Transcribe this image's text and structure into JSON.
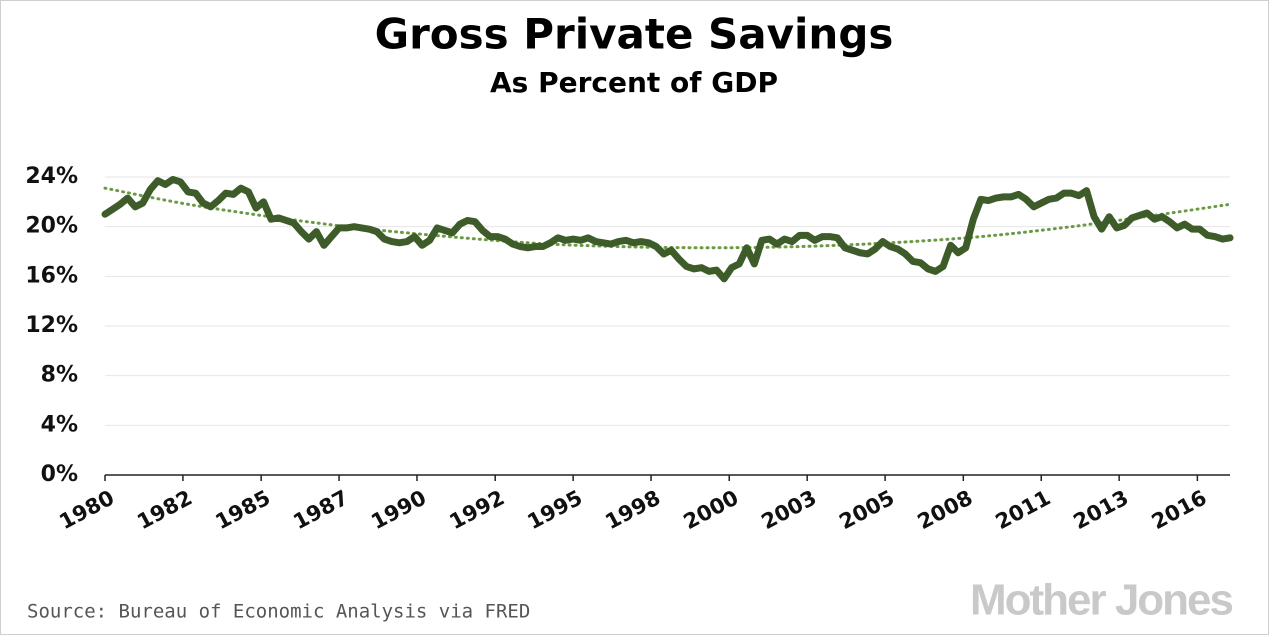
{
  "chart_data": {
    "type": "line",
    "title": "Gross Private Savings",
    "subtitle": "As Percent of GDP",
    "source": "Source: Bureau of Economic Analysis via FRED",
    "logo": "Mother Jones",
    "x": [
      1980,
      1980.25,
      1980.5,
      1980.75,
      1981,
      1981.25,
      1981.5,
      1981.75,
      1982,
      1982.25,
      1982.5,
      1982.75,
      1983,
      1983.25,
      1983.5,
      1983.75,
      1984,
      1984.25,
      1984.5,
      1984.75,
      1985,
      1985.25,
      1985.5,
      1985.75,
      1986,
      1986.25,
      1986.5,
      1986.75,
      1987,
      1987.25,
      1987.5,
      1987.75,
      1988,
      1988.25,
      1988.5,
      1988.75,
      1989,
      1989.25,
      1989.5,
      1989.75,
      1990,
      1990.25,
      1990.5,
      1990.75,
      1991,
      1991.25,
      1991.5,
      1991.75,
      1992,
      1992.25,
      1992.5,
      1992.75,
      1993,
      1993.25,
      1993.5,
      1993.75,
      1994,
      1994.25,
      1994.5,
      1994.75,
      1995,
      1995.25,
      1995.5,
      1995.75,
      1996,
      1996.25,
      1996.5,
      1996.75,
      1997,
      1997.25,
      1997.5,
      1997.75,
      1998,
      1998.25,
      1998.5,
      1998.75,
      1999,
      1999.25,
      1999.5,
      1999.75,
      2000,
      2000.25,
      2000.5,
      2000.75,
      2001,
      2001.25,
      2001.5,
      2001.75,
      2002,
      2002.25,
      2002.5,
      2002.75,
      2003,
      2003.25,
      2003.5,
      2003.75,
      2004,
      2004.25,
      2004.5,
      2004.75,
      2005,
      2005.25,
      2005.5,
      2005.75,
      2006,
      2006.25,
      2006.5,
      2006.75,
      2007,
      2007.25,
      2007.5,
      2007.75,
      2008,
      2008.25,
      2008.5,
      2008.75,
      2009,
      2009.25,
      2009.5,
      2009.75,
      2010,
      2010.25,
      2010.5,
      2010.75,
      2011,
      2011.25,
      2011.5,
      2011.75,
      2012,
      2012.25,
      2012.5,
      2012.75,
      2013,
      2013.25,
      2013.5,
      2013.75,
      2014,
      2014.25,
      2014.5,
      2014.75,
      2015,
      2015.25,
      2015.5,
      2015.75,
      2016,
      2016.25,
      2016.5,
      2016.75,
      2017,
      2017.25
    ],
    "series": [
      {
        "color": "#3e5c29",
        "values": [
          21.0,
          21.4,
          21.8,
          22.3,
          21.6,
          21.9,
          23.0,
          23.7,
          23.4,
          23.8,
          23.6,
          22.8,
          22.7,
          21.9,
          21.6,
          22.1,
          22.7,
          22.6,
          23.1,
          22.8,
          21.5,
          22.0,
          20.6,
          20.7,
          20.5,
          20.3,
          19.6,
          19.0,
          19.6,
          18.5,
          19.2,
          19.9,
          19.9,
          20.0,
          19.9,
          19.8,
          19.6,
          19.0,
          18.8,
          18.7,
          18.8,
          19.2,
          18.5,
          18.9,
          19.9,
          19.7,
          19.5,
          20.2,
          20.5,
          20.4,
          19.7,
          19.2,
          19.2,
          19.0,
          18.6,
          18.4,
          18.3,
          18.4,
          18.4,
          18.7,
          19.1,
          18.9,
          19.0,
          18.9,
          19.1,
          18.8,
          18.7,
          18.6,
          18.8,
          18.9,
          18.7,
          18.8,
          18.7,
          18.4,
          17.8,
          18.1,
          17.4,
          16.8,
          16.6,
          16.7,
          16.4,
          16.5,
          15.8,
          16.7,
          17.0,
          18.3,
          17.0,
          18.9,
          19.0,
          18.6,
          19.0,
          18.8,
          19.3,
          19.3,
          18.9,
          19.2,
          19.2,
          19.1,
          18.3,
          18.1,
          17.9,
          17.8,
          18.2,
          18.8,
          18.4,
          18.2,
          17.8,
          17.2,
          17.1,
          16.6,
          16.4,
          16.8,
          18.5,
          17.9,
          18.3,
          20.6,
          22.2,
          22.1,
          22.3,
          22.4,
          22.4,
          22.6,
          22.2,
          21.6,
          21.9,
          22.2,
          22.3,
          22.7,
          22.7,
          22.5,
          22.9,
          20.8,
          19.8,
          20.8,
          19.9,
          20.1,
          20.7,
          20.9,
          21.1,
          20.6,
          20.8,
          20.4,
          19.9,
          20.2,
          19.8,
          19.8,
          19.3,
          19.2,
          19.0,
          19.1
        ]
      }
    ],
    "trendline": {
      "color": "#6a9a44",
      "x": [
        1980,
        1983,
        1987,
        1990,
        1994,
        1997,
        2000,
        2003,
        2006,
        2009,
        2012,
        2015,
        2017.25
      ],
      "values": [
        23.1,
        21.7,
        20.3,
        19.5,
        18.7,
        18.4,
        18.3,
        18.4,
        18.7,
        19.2,
        20.0,
        21.0,
        21.8
      ]
    },
    "xlim": [
      1980,
      2017.25
    ],
    "xticks": [
      {
        "value": 1980,
        "label": "1980"
      },
      {
        "value": 1982.58,
        "label": "1982"
      },
      {
        "value": 1985.17,
        "label": "1985"
      },
      {
        "value": 1987.75,
        "label": "1987"
      },
      {
        "value": 1990.33,
        "label": "1990"
      },
      {
        "value": 1992.92,
        "label": "1992"
      },
      {
        "value": 1995.5,
        "label": "1995"
      },
      {
        "value": 1998.08,
        "label": "1998"
      },
      {
        "value": 2000.67,
        "label": "2000"
      },
      {
        "value": 2003.25,
        "label": "2003"
      },
      {
        "value": 2005.83,
        "label": "2005"
      },
      {
        "value": 2008.42,
        "label": "2008"
      },
      {
        "value": 2011,
        "label": "2011"
      },
      {
        "value": 2013.58,
        "label": "2013"
      },
      {
        "value": 2016.17,
        "label": "2016"
      }
    ],
    "ylim": [
      0,
      24
    ],
    "yticks": [
      {
        "value": 0,
        "label": "0%"
      },
      {
        "value": 4,
        "label": "4%"
      },
      {
        "value": 8,
        "label": "8%"
      },
      {
        "value": 12,
        "label": "12%"
      },
      {
        "value": 16,
        "label": "16%"
      },
      {
        "value": 20,
        "label": "20%"
      },
      {
        "value": 24,
        "label": "24%"
      }
    ],
    "grid": true
  }
}
